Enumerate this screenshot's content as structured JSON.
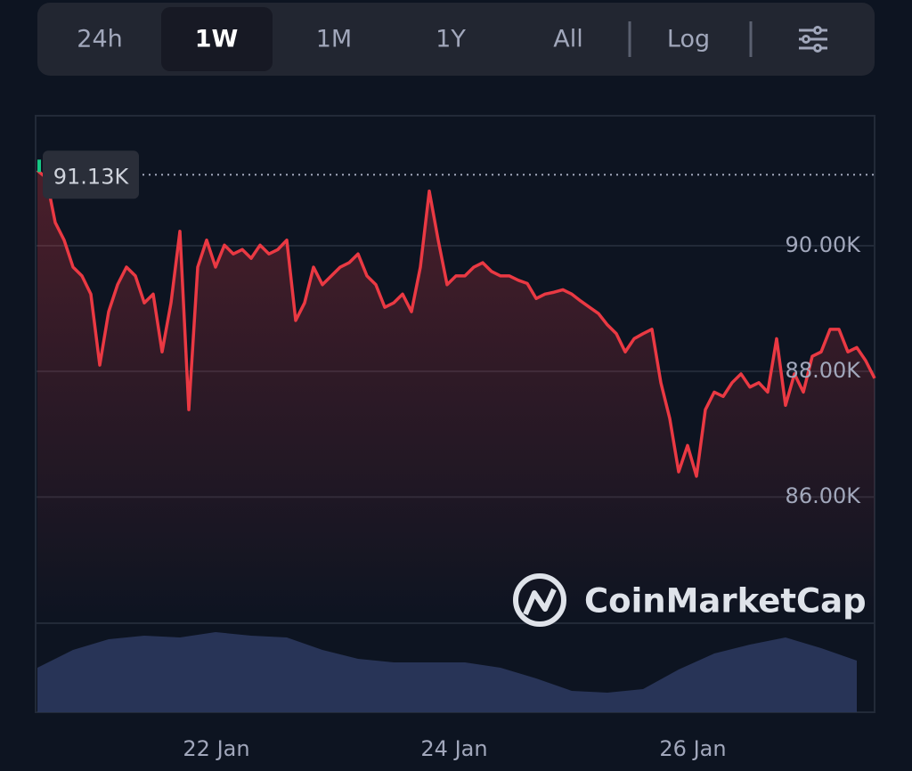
{
  "tabs": {
    "items": [
      "24h",
      "1W",
      "1M",
      "1Y",
      "All",
      "Log"
    ],
    "selected": 1
  },
  "chart_data": {
    "type": "line",
    "values": [
      91.2,
      91.08,
      90.37,
      90.09,
      89.66,
      89.52,
      89.23,
      88.1,
      88.95,
      89.38,
      89.66,
      89.52,
      89.09,
      89.23,
      88.31,
      89.09,
      90.23,
      87.39,
      89.66,
      90.09,
      89.66,
      90.01,
      89.87,
      89.94,
      89.8,
      90.01,
      89.87,
      89.94,
      90.09,
      88.81,
      89.09,
      89.66,
      89.38,
      89.52,
      89.66,
      89.73,
      89.87,
      89.52,
      89.38,
      89.02,
      89.09,
      89.23,
      88.95,
      89.66,
      90.87,
      90.09,
      89.38,
      89.52,
      89.52,
      89.66,
      89.73,
      89.59,
      89.52,
      89.52,
      89.45,
      89.4,
      89.16,
      89.23,
      89.26,
      89.3,
      89.23,
      89.12,
      89.02,
      88.92,
      88.74,
      88.6,
      88.31,
      88.52,
      88.6,
      88.67,
      87.82,
      87.25,
      86.4,
      86.82,
      86.33,
      87.39,
      87.67,
      87.6,
      87.82,
      87.96,
      87.75,
      87.82,
      87.67,
      88.52,
      87.46,
      87.96,
      87.67,
      88.24,
      88.31,
      88.67,
      88.67,
      88.31,
      88.38,
      88.17,
      87.89
    ],
    "color": "#ea3943",
    "xlim": [
      0,
      94
    ],
    "xticks": [
      {
        "value": 20.1,
        "label": "22 Jan"
      },
      {
        "value": 46.8,
        "label": "24 Jan"
      },
      {
        "value": 73.6,
        "label": "26 Jan"
      }
    ],
    "ylim": [
      83.99,
      92.07
    ],
    "yticks": [
      {
        "value": 86,
        "label": "86.00K"
      },
      {
        "value": 88,
        "label": "88.00K"
      },
      {
        "value": 90,
        "label": "90.00K"
      }
    ],
    "grid": true,
    "reference": {
      "value": 91.13,
      "label": "91.13K"
    },
    "watermark": "CoinMarketCap",
    "volume": {
      "values": [
        50,
        70,
        82,
        86,
        84,
        90,
        86,
        84,
        70,
        60,
        56,
        56,
        56,
        50,
        38,
        24,
        22,
        26,
        48,
        66,
        76,
        84,
        72,
        58
      ],
      "ylim": [
        0,
        100
      ],
      "color": "#283457"
    }
  }
}
